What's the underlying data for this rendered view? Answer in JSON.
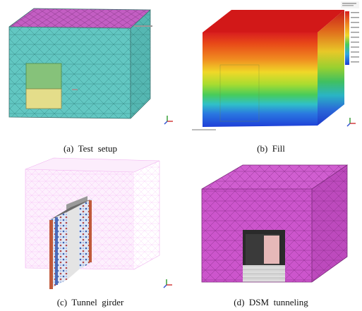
{
  "figure": {
    "captions": {
      "a": "(a)  Test  setup",
      "b": "(b)  Fill",
      "c": "(c)  Tunnel  girder",
      "d": "(d)  DSM  tunneling"
    }
  }
}
